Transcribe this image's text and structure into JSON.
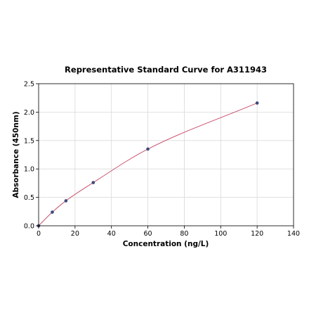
{
  "chart_data": {
    "type": "scatter",
    "title": "Representative Standard Curve for A311943",
    "xlabel": "Concentration (ng/L)",
    "ylabel": "Absorbance (450nm)",
    "xlim": [
      0,
      140
    ],
    "ylim": [
      0,
      2.5
    ],
    "x_ticks": [
      "0",
      "20",
      "40",
      "60",
      "80",
      "100",
      "120",
      "140"
    ],
    "y_ticks": [
      "0.0",
      "0.5",
      "1.0",
      "1.5",
      "2.0",
      "2.5"
    ],
    "grid": true,
    "legend": "none",
    "series": [
      {
        "x": [
          0,
          7.5,
          15,
          30,
          60,
          120
        ],
        "y": [
          0.0,
          0.24,
          0.44,
          0.76,
          1.35,
          2.16
        ]
      }
    ],
    "fit_curve": {
      "type": "smooth fit through points"
    },
    "colors": {
      "points": "#3b4a7a",
      "curve": "#c8526e",
      "grid": "#d9d9d9",
      "axis": "#000000"
    }
  }
}
